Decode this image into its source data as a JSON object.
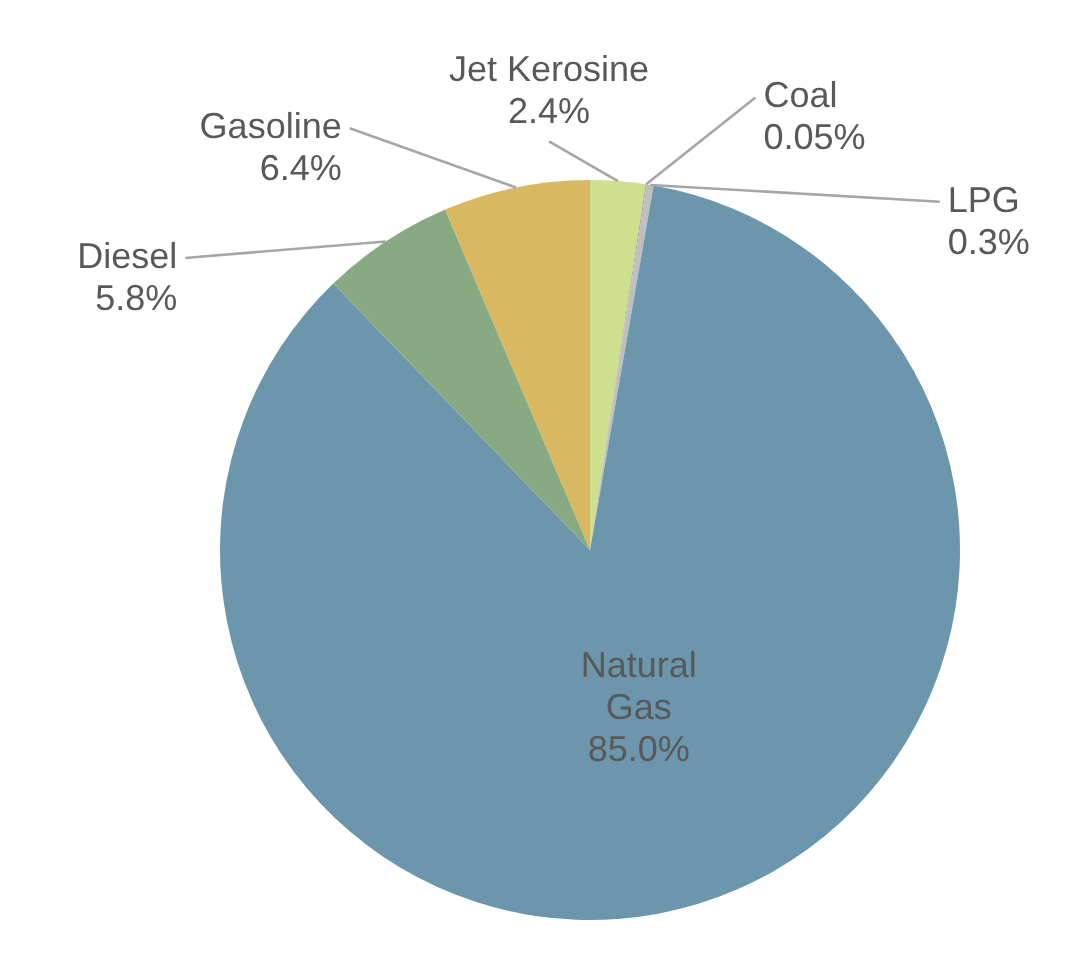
{
  "chart_data": {
    "type": "pie",
    "categories": [
      "Jet Kerosine",
      "Coal",
      "LPG",
      "Natural Gas",
      "Diesel",
      "Gasoline"
    ],
    "values": [
      2.4,
      0.05,
      0.3,
      85.0,
      5.8,
      6.4
    ],
    "colors": [
      "#cee08e",
      "#a5a5a5",
      "#bfbfbf",
      "#6b96ab",
      "#88aa82",
      "#d9b862"
    ],
    "value_labels": [
      "2.4%",
      "0.05%",
      "0.3%",
      "85.0%",
      "5.8%",
      "6.4%"
    ]
  }
}
